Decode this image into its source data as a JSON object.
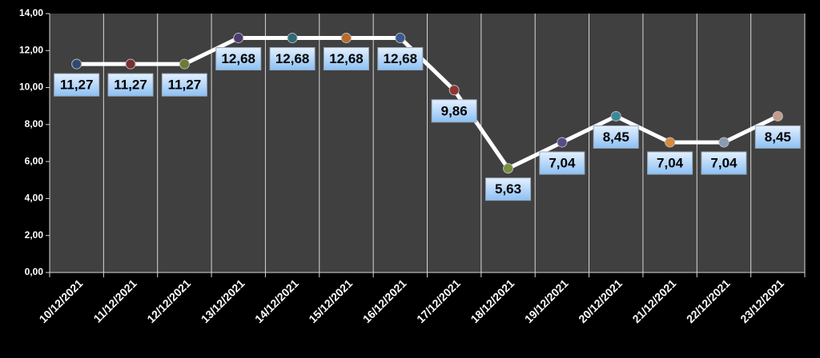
{
  "chart_data": {
    "type": "line",
    "categories": [
      "10/12/2021",
      "11/12/2021",
      "12/12/2021",
      "13/12/2021",
      "14/12/2021",
      "15/12/2021",
      "16/12/2021",
      "17/12/2021",
      "18/12/2021",
      "19/12/2021",
      "20/12/2021",
      "21/12/2021",
      "22/12/2021",
      "23/12/2021"
    ],
    "values": [
      11.27,
      11.27,
      11.27,
      12.68,
      12.68,
      12.68,
      12.68,
      9.86,
      5.63,
      7.04,
      8.45,
      7.04,
      7.04,
      8.45
    ],
    "value_labels": [
      "11,27",
      "11,27",
      "11,27",
      "12,68",
      "12,68",
      "12,68",
      "12,68",
      "9,86",
      "5,63",
      "7,04",
      "8,45",
      "7,04",
      "7,04",
      "8,45"
    ],
    "color": "#ffffff",
    "point_colors": [
      "#2e4a6e",
      "#7a2e2e",
      "#6b7a34",
      "#4e3a6e",
      "#2e6a78",
      "#b86a2a",
      "#3a5a8e",
      "#8e3434",
      "#7a8e3e",
      "#5a4a8a",
      "#3a8a9a",
      "#d88a3a",
      "#8a9ab0",
      "#c49a8a"
    ],
    "ylim": [
      0,
      14
    ],
    "yticks": [
      {
        "value": 0,
        "label": "0,00"
      },
      {
        "value": 2,
        "label": "2,00"
      },
      {
        "value": 4,
        "label": "4,00"
      },
      {
        "value": 6,
        "label": "6,00"
      },
      {
        "value": 8,
        "label": "8,00"
      },
      {
        "value": 10,
        "label": "10,00"
      },
      {
        "value": 12,
        "label": "12,00"
      },
      {
        "value": 14,
        "label": "14,00"
      }
    ]
  }
}
